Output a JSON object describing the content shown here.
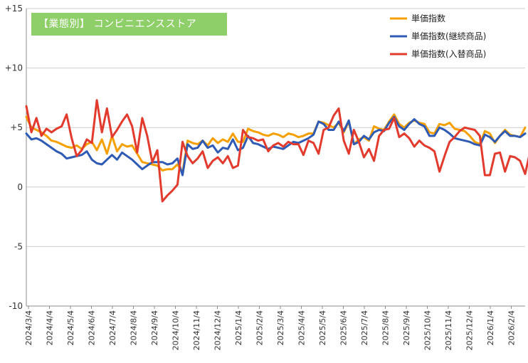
{
  "chart_data": {
    "type": "line",
    "title": "【業態別】 コンビニエンスストア",
    "ylim": [
      -10,
      15
    ],
    "yticks": [
      {
        "value": 15,
        "label": "+15"
      },
      {
        "value": 10,
        "label": "+10"
      },
      {
        "value": 5,
        "label": "+5"
      },
      {
        "value": 0,
        "label": "0"
      },
      {
        "value": -5,
        "label": "-5"
      },
      {
        "value": -10,
        "label": "-10"
      }
    ],
    "x_tick_labels": [
      "2024/3/4",
      "2024/4/4",
      "2024/5/4",
      "2024/6/4",
      "2024/7/4",
      "2024/8/4",
      "2024/9/4",
      "2024/10/4",
      "2024/11/4",
      "2024/12/4",
      "2025/1/4",
      "2025/2/4",
      "2025/3/4",
      "2025/4/4",
      "2025/5/4",
      "2025/6/4",
      "2025/7/4",
      "2025/8/4",
      "2025/9/4",
      "2025/10/4",
      "2025/11/4",
      "2025/12/4",
      "2026/1/4",
      "2026/2/4"
    ],
    "grid": "horizontal",
    "legend_position": "top-right",
    "series": [
      {
        "name": "単価指数",
        "color": "#f5a000",
        "values": [
          5.9,
          5.0,
          4.8,
          4.6,
          4.3,
          3.9,
          3.8,
          3.6,
          3.4,
          3.3,
          3.5,
          3.2,
          3.6,
          3.8,
          3.1,
          4.0,
          2.8,
          4.3,
          3.0,
          3.6,
          3.4,
          3.5,
          2.8,
          2.1,
          2.0,
          1.9,
          1.8,
          1.4,
          1.5,
          1.5,
          1.9,
          1.2,
          3.9,
          3.7,
          3.6,
          3.9,
          3.5,
          4.1,
          3.7,
          4.0,
          3.8,
          4.5,
          3.8,
          3.8,
          4.9,
          4.7,
          4.6,
          4.4,
          4.3,
          4.5,
          4.4,
          4.2,
          4.5,
          4.4,
          4.2,
          4.3,
          4.5,
          4.5,
          5.5,
          5.4,
          5.2,
          5.0,
          5.4,
          4.6,
          5.5,
          3.6,
          4.0,
          4.2,
          3.9,
          5.1,
          4.9,
          4.8,
          5.5,
          6.1,
          5.3,
          5.0,
          5.4,
          5.6,
          5.4,
          5.3,
          4.6,
          4.5,
          5.3,
          5.2,
          5.4,
          4.9,
          4.8,
          4.7,
          4.3,
          3.8,
          3.6,
          4.7,
          4.5,
          3.7,
          4.3,
          4.8,
          4.4,
          4.3,
          4.2,
          5.0
        ]
      },
      {
        "name": "単価指数(継続商品)",
        "color": "#2f5bb5",
        "values": [
          4.5,
          4.0,
          4.1,
          3.9,
          3.6,
          3.3,
          3.0,
          2.8,
          2.4,
          2.5,
          2.6,
          2.7,
          3.0,
          2.3,
          2.0,
          1.9,
          2.3,
          2.7,
          2.3,
          2.9,
          2.6,
          2.3,
          1.9,
          1.5,
          1.8,
          2.1,
          2.1,
          2.1,
          1.9,
          2.0,
          2.4,
          1.0,
          3.6,
          3.2,
          3.3,
          3.9,
          3.3,
          3.5,
          2.9,
          3.3,
          3.2,
          4.0,
          3.1,
          3.3,
          4.3,
          3.7,
          3.6,
          3.4,
          3.2,
          3.4,
          3.3,
          3.2,
          3.5,
          3.8,
          3.7,
          3.9,
          4.1,
          4.4,
          5.5,
          5.3,
          4.8,
          4.8,
          5.5,
          4.7,
          5.6,
          3.6,
          3.8,
          4.3,
          4.0,
          4.6,
          4.8,
          4.7,
          5.4,
          5.9,
          5.1,
          4.8,
          5.3,
          5.7,
          5.3,
          5.1,
          4.3,
          4.3,
          5.0,
          4.8,
          4.5,
          4.1,
          4.0,
          3.9,
          3.8,
          3.6,
          3.5,
          4.4,
          4.2,
          3.8,
          4.3,
          4.7,
          4.3,
          4.3,
          4.2,
          4.5
        ]
      },
      {
        "name": "単価指数(入替商品)",
        "color": "#e23b2e",
        "values": [
          6.8,
          4.6,
          5.8,
          4.3,
          4.9,
          4.6,
          4.9,
          5.1,
          6.1,
          4.1,
          2.6,
          3.1,
          4.0,
          3.7,
          7.3,
          4.6,
          6.6,
          4.2,
          4.8,
          5.5,
          6.1,
          5.1,
          2.9,
          5.8,
          4.3,
          2.1,
          3.1,
          -1.2,
          -0.7,
          -0.3,
          0.2,
          3.8,
          2.6,
          2.0,
          2.4,
          3.0,
          1.6,
          2.2,
          2.5,
          2.0,
          2.6,
          1.6,
          1.8,
          4.8,
          4.2,
          4.1,
          3.9,
          4.0,
          3.0,
          3.5,
          3.7,
          3.4,
          3.8,
          3.6,
          3.6,
          2.7,
          3.9,
          3.7,
          2.8,
          4.8,
          5.0,
          6.0,
          6.6,
          3.9,
          2.8,
          4.8,
          3.8,
          2.5,
          3.2,
          2.2,
          4.3,
          4.8,
          4.9,
          5.8,
          4.2,
          4.5,
          4.1,
          3.4,
          3.9,
          3.5,
          3.3,
          3.0,
          1.3,
          2.6,
          3.8,
          4.2,
          4.7,
          5.0,
          4.9,
          4.8,
          4.3,
          1.0,
          1.0,
          2.8,
          2.9,
          1.3,
          2.6,
          2.5,
          2.2,
          1.1,
          3.0
        ]
      }
    ]
  }
}
